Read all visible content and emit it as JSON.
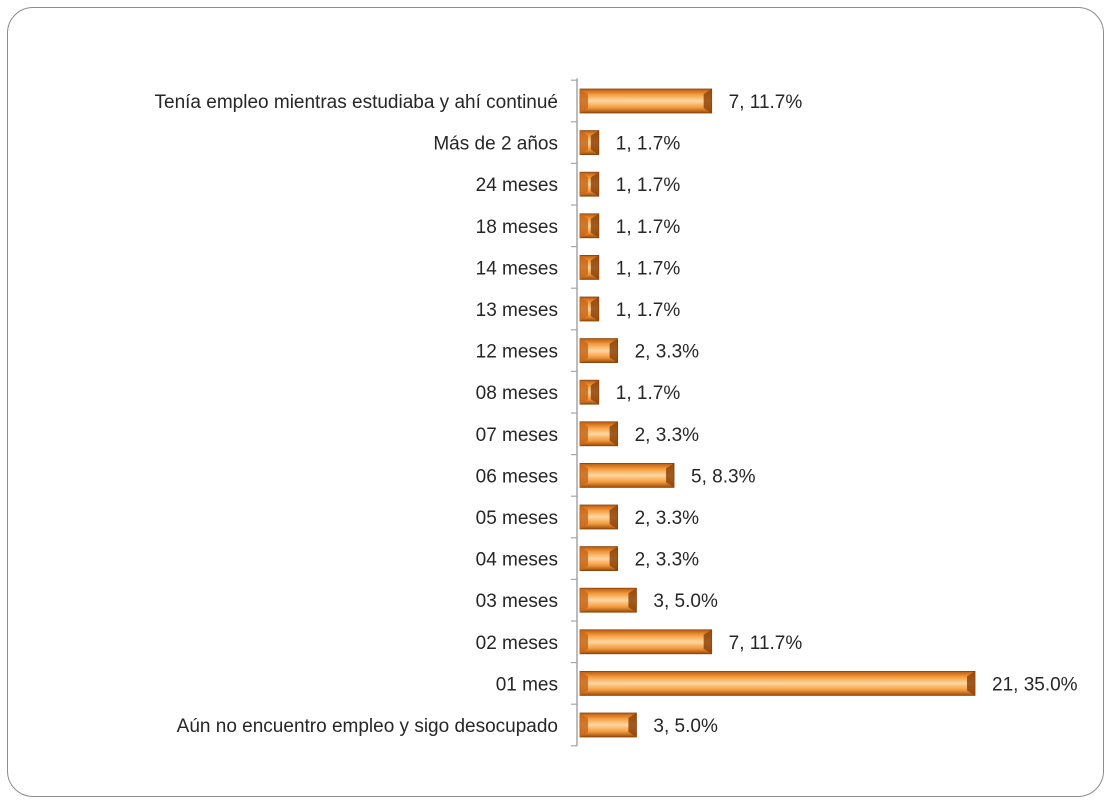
{
  "chart_data": {
    "type": "bar",
    "orientation": "horizontal",
    "title": "",
    "xlabel": "",
    "ylabel": "",
    "categories": [
      "Tenía empleo mientras estudiaba y ahí continué",
      "Más de 2 años",
      "24 meses",
      "18 meses",
      "14 meses",
      "13 meses",
      "12 meses",
      "08 meses",
      "07 meses",
      "06 meses",
      "05 meses",
      "04 meses",
      "03 meses",
      "02 meses",
      "01 mes",
      "Aún no encuentro empleo y sigo desocupado"
    ],
    "values": [
      7,
      1,
      1,
      1,
      1,
      1,
      2,
      1,
      2,
      5,
      2,
      2,
      3,
      7,
      21,
      3
    ],
    "data_labels": [
      "7, 11.7%",
      "1, 1.7%",
      "1, 1.7%",
      "1, 1.7%",
      "1, 1.7%",
      "1, 1.7%",
      "2, 3.3%",
      "1, 1.7%",
      "2, 3.3%",
      "5, 8.3%",
      "2, 3.3%",
      "2, 3.3%",
      "3, 5.0%",
      "7, 11.7%",
      "21, 35.0%",
      "3, 5.0%"
    ],
    "xlim": [
      0,
      21
    ],
    "grid": false,
    "legend": false,
    "colors": {
      "bar_light": "#ffc98a",
      "bar_mid": "#f0902a",
      "bar_dark": "#a8520f",
      "axis": "#a6a6a6"
    }
  }
}
